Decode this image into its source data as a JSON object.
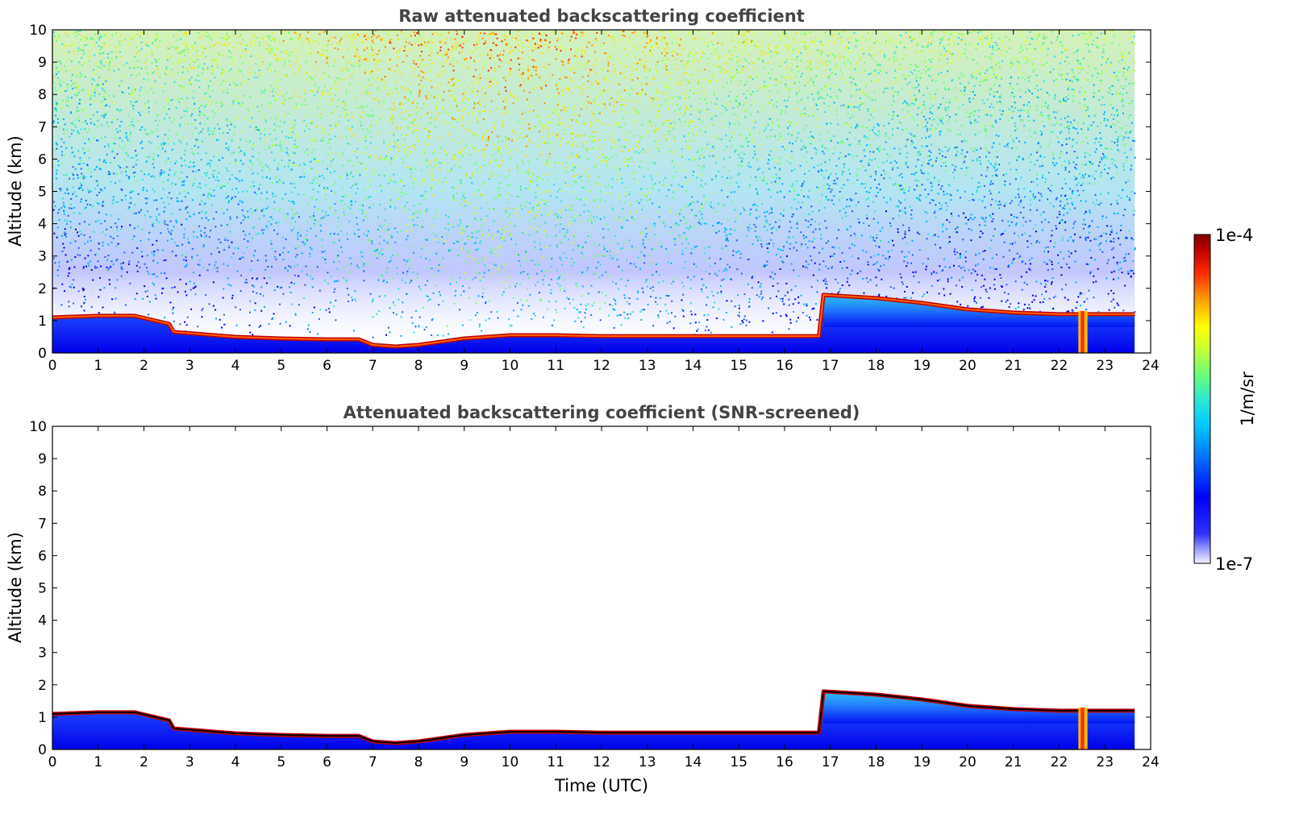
{
  "chart_data": [
    {
      "type": "heatmap",
      "title": "Raw attenuated backscattering coefficient",
      "xlabel": "",
      "ylabel": "Altitude (km)",
      "xlim": [
        0,
        24
      ],
      "ylim": [
        0,
        10
      ],
      "x_ticks": [
        "0",
        "1",
        "2",
        "3",
        "4",
        "5",
        "6",
        "7",
        "8",
        "9",
        "10",
        "11",
        "12",
        "13",
        "14",
        "15",
        "16",
        "17",
        "18",
        "19",
        "20",
        "21",
        "22",
        "23",
        "24"
      ],
      "y_ticks": [
        "0",
        "1",
        "2",
        "3",
        "4",
        "5",
        "6",
        "7",
        "8",
        "9",
        "10"
      ],
      "data_end_time": 23.65,
      "noise_background": true,
      "layer_top_km": [
        [
          0.0,
          1.1
        ],
        [
          1.0,
          1.15
        ],
        [
          1.8,
          1.15
        ],
        [
          2.55,
          0.9
        ],
        [
          2.65,
          0.65
        ],
        [
          4.0,
          0.5
        ],
        [
          5.0,
          0.45
        ],
        [
          6.0,
          0.42
        ],
        [
          6.7,
          0.42
        ],
        [
          7.0,
          0.25
        ],
        [
          7.5,
          0.2
        ],
        [
          8.0,
          0.25
        ],
        [
          8.5,
          0.35
        ],
        [
          9.0,
          0.45
        ],
        [
          10.0,
          0.55
        ],
        [
          11.0,
          0.55
        ],
        [
          12.0,
          0.52
        ],
        [
          13.0,
          0.52
        ],
        [
          14.0,
          0.52
        ],
        [
          15.0,
          0.52
        ],
        [
          16.0,
          0.52
        ],
        [
          16.75,
          0.52
        ],
        [
          16.85,
          1.8
        ],
        [
          18.0,
          1.7
        ],
        [
          19.0,
          1.55
        ],
        [
          20.0,
          1.35
        ],
        [
          21.0,
          1.25
        ],
        [
          22.0,
          1.2
        ],
        [
          22.5,
          1.2
        ],
        [
          23.0,
          1.2
        ],
        [
          23.65,
          1.2
        ]
      ]
    },
    {
      "type": "heatmap",
      "title": "Attenuated backscattering coefficient (SNR-screened)",
      "xlabel": "Time (UTC)",
      "ylabel": "Altitude (km)",
      "xlim": [
        0,
        24
      ],
      "ylim": [
        0,
        10
      ],
      "x_ticks": [
        "0",
        "1",
        "2",
        "3",
        "4",
        "5",
        "6",
        "7",
        "8",
        "9",
        "10",
        "11",
        "12",
        "13",
        "14",
        "15",
        "16",
        "17",
        "18",
        "19",
        "20",
        "21",
        "22",
        "23",
        "24"
      ],
      "y_ticks": [
        "0",
        "1",
        "2",
        "3",
        "4",
        "5",
        "6",
        "7",
        "8",
        "9",
        "10"
      ],
      "data_end_time": 23.65,
      "noise_background": false
    }
  ],
  "colorbar": {
    "label": "1/m/sr",
    "max_label": "1e-4",
    "min_label": "1e-7",
    "colormap": [
      "#ffffff",
      "#3030ff",
      "#0000ff",
      "#0060ff",
      "#00c0ff",
      "#40e0d0",
      "#60ff80",
      "#c0ff40",
      "#ffff00",
      "#ff9000",
      "#ff3000",
      "#c00000",
      "#800000"
    ]
  }
}
